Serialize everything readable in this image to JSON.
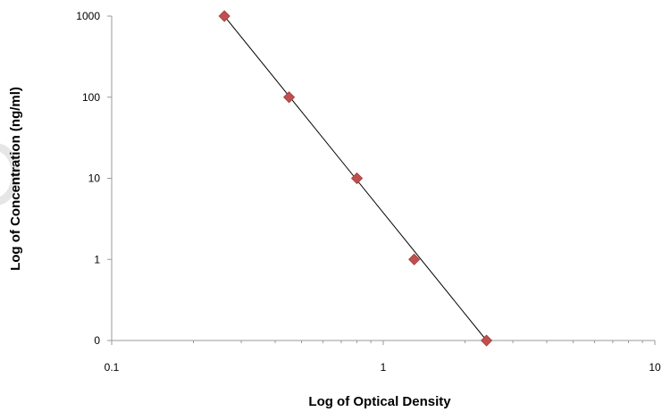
{
  "chart_data": {
    "type": "scatter",
    "title": "",
    "xlabel": "Log of Optical Density",
    "ylabel": "Log of Concentration (ng/ml)",
    "x_scale": "log",
    "y_scale": "log",
    "xlim": [
      0.1,
      10
    ],
    "x_ticks": [
      {
        "value": 0.1,
        "label": "0.1"
      },
      {
        "value": 1,
        "label": "1"
      },
      {
        "value": 10,
        "label": "10"
      }
    ],
    "y_ticks": [
      {
        "value": 1000,
        "label": "1000"
      },
      {
        "value": 100,
        "label": "100"
      },
      {
        "value": 10,
        "label": "10"
      },
      {
        "value": 1,
        "label": "1"
      },
      {
        "value": 0.1,
        "label": "0"
      }
    ],
    "points": [
      {
        "x": 0.26,
        "y": 1000
      },
      {
        "x": 0.45,
        "y": 100
      },
      {
        "x": 0.8,
        "y": 10
      },
      {
        "x": 1.3,
        "y": 1
      },
      {
        "x": 2.4,
        "y": 0.1
      }
    ],
    "trendline": {
      "from": {
        "x": 0.26,
        "y": 1000
      },
      "to": {
        "x": 2.4,
        "y": 0.1
      }
    },
    "grid": false,
    "legend": "none",
    "marker_color": "#c0504d",
    "marker_stroke": "#9e3b38",
    "line_color": "#000000",
    "axis_color": "#9a9a9a"
  }
}
